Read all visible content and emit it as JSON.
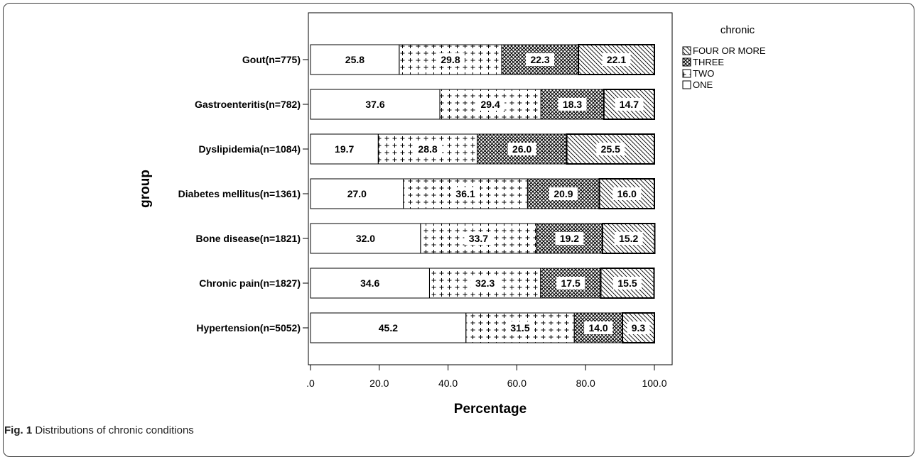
{
  "caption": {
    "fig": "Fig. 1",
    "text": "Distributions of chronic conditions"
  },
  "chart_data": {
    "type": "bar",
    "orientation": "horizontal",
    "stacked": true,
    "xlabel": "Percentage",
    "ylabel": "group",
    "xlim": [
      0,
      100
    ],
    "xticks": [
      ".0",
      "20.0",
      "40.0",
      "60.0",
      "80.0",
      "100.0"
    ],
    "legend_title": "chronic",
    "legend_position": "right",
    "categories": [
      "Gout(n=775)",
      "Gastroenteritis(n=782)",
      "Dyslipidemia(n=1084)",
      "Diabetes mellitus(n=1361)",
      "Bone disease(n=1821)",
      "Chronic pain(n=1827)",
      "Hypertension(n=5052)"
    ],
    "series": [
      {
        "name": "ONE",
        "pattern": "blank",
        "values": [
          25.8,
          37.6,
          19.7,
          27.0,
          32.0,
          34.6,
          45.2
        ],
        "labels": [
          "25.8",
          "37.6",
          "19.7",
          "27.0",
          "32.0",
          "34.6",
          "45.2"
        ]
      },
      {
        "name": "TWO",
        "pattern": "plus",
        "values": [
          29.8,
          29.4,
          28.8,
          36.1,
          33.7,
          32.3,
          31.5
        ],
        "labels": [
          "29.8",
          "29.4",
          "28.8",
          "36.1",
          "33.7",
          "32.3",
          "31.5"
        ]
      },
      {
        "name": "THREE",
        "pattern": "crosshatch",
        "values": [
          22.3,
          18.3,
          26.0,
          20.9,
          19.2,
          17.5,
          14.0
        ],
        "labels": [
          "22.3",
          "18.3",
          "26.0",
          "20.9",
          "19.2",
          "17.5",
          "14.0"
        ]
      },
      {
        "name": "FOUR OR MORE",
        "pattern": "diagonal",
        "values": [
          22.1,
          14.7,
          25.5,
          16.0,
          15.2,
          15.5,
          9.3
        ],
        "labels": [
          "22.1",
          "14.7",
          "25.5",
          "16.0",
          "15.2",
          "15.5",
          "9.3"
        ]
      }
    ],
    "legend_order": [
      "FOUR OR MORE",
      "THREE",
      "TWO",
      "ONE"
    ],
    "grid": false
  }
}
